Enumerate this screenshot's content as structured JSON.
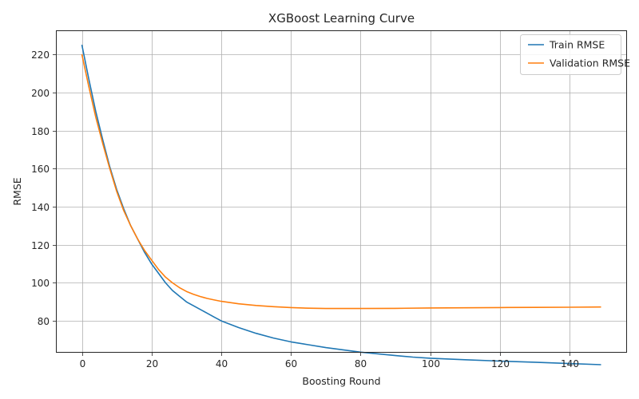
{
  "chart_data": {
    "type": "line",
    "title": "XGBoost Learning Curve",
    "xlabel": "Boosting Round",
    "ylabel": "RMSE",
    "xlim": [
      -7.45,
      156.45
    ],
    "ylim": [
      63.3,
      232.6
    ],
    "xticks": [
      0,
      20,
      40,
      60,
      80,
      100,
      120,
      140
    ],
    "yticks": [
      80,
      100,
      120,
      140,
      160,
      180,
      200,
      220
    ],
    "grid": true,
    "legend_position": "top-right",
    "series": [
      {
        "name": "Train RMSE",
        "color": "#1f77b4",
        "points": [
          [
            0,
            225
          ],
          [
            2,
            207
          ],
          [
            4,
            190
          ],
          [
            6,
            175
          ],
          [
            8,
            161
          ],
          [
            10,
            149
          ],
          [
            12,
            139
          ],
          [
            14,
            130
          ],
          [
            16,
            123
          ],
          [
            18,
            116
          ],
          [
            20,
            110
          ],
          [
            22,
            105
          ],
          [
            24,
            100
          ],
          [
            26,
            96
          ],
          [
            28,
            93
          ],
          [
            30,
            90
          ],
          [
            32,
            88
          ],
          [
            34,
            86
          ],
          [
            36,
            84
          ],
          [
            38,
            82
          ],
          [
            40,
            80
          ],
          [
            45,
            76.5
          ],
          [
            50,
            73.5
          ],
          [
            55,
            71
          ],
          [
            60,
            69
          ],
          [
            65,
            67.5
          ],
          [
            70,
            66
          ],
          [
            75,
            64.8
          ],
          [
            80,
            63.6
          ],
          [
            85,
            62.7
          ],
          [
            90,
            61.8
          ],
          [
            95,
            61
          ],
          [
            100,
            60.4
          ],
          [
            110,
            59.6
          ],
          [
            120,
            58.9
          ],
          [
            130,
            58.3
          ],
          [
            140,
            57.6
          ],
          [
            149,
            57
          ]
        ]
      },
      {
        "name": "Validation RMSE",
        "color": "#ff7f0e",
        "points": [
          [
            0,
            220
          ],
          [
            2,
            203
          ],
          [
            4,
            187
          ],
          [
            6,
            173
          ],
          [
            8,
            160
          ],
          [
            10,
            148
          ],
          [
            12,
            138
          ],
          [
            14,
            130
          ],
          [
            16,
            123
          ],
          [
            18,
            117
          ],
          [
            20,
            112
          ],
          [
            22,
            107
          ],
          [
            24,
            103
          ],
          [
            26,
            100
          ],
          [
            28,
            97.5
          ],
          [
            30,
            95.5
          ],
          [
            32,
            94
          ],
          [
            34,
            92.8
          ],
          [
            36,
            91.8
          ],
          [
            38,
            91
          ],
          [
            40,
            90.3
          ],
          [
            45,
            89
          ],
          [
            50,
            88.1
          ],
          [
            55,
            87.5
          ],
          [
            60,
            87
          ],
          [
            65,
            86.7
          ],
          [
            70,
            86.5
          ],
          [
            75,
            86.5
          ],
          [
            80,
            86.5
          ],
          [
            90,
            86.6
          ],
          [
            100,
            86.8
          ],
          [
            110,
            86.9
          ],
          [
            120,
            87
          ],
          [
            130,
            87.1
          ],
          [
            140,
            87.2
          ],
          [
            149,
            87.3
          ]
        ]
      }
    ]
  }
}
